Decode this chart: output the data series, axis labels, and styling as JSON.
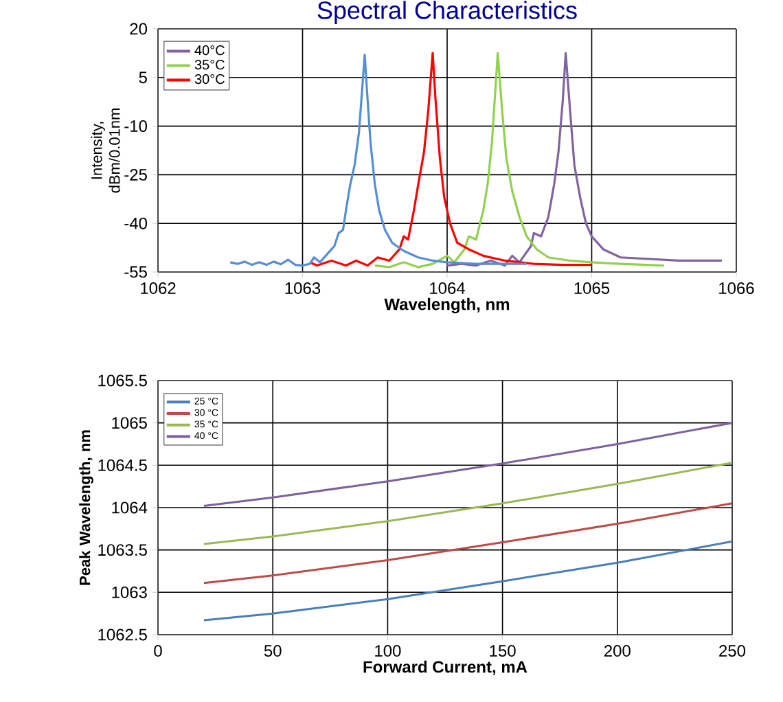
{
  "chart_data": [
    {
      "type": "line",
      "title": "Spectral Characteristics",
      "xlabel": "Wavelength, nm",
      "ylabel": "Intensity, dBm/0.01nm",
      "xlim": [
        1062,
        1066
      ],
      "ylim": [
        -55,
        20
      ],
      "xticks": [
        1062,
        1063,
        1064,
        1065,
        1066
      ],
      "yticks": [
        -55,
        -40,
        -25,
        -10,
        5,
        20
      ],
      "grid": true,
      "legend": "top left",
      "series": [
        {
          "name": "40°C",
          "color": "#8064a2",
          "x": [
            1064.0,
            1064.1,
            1064.2,
            1064.3,
            1064.4,
            1064.45,
            1064.5,
            1064.58,
            1064.6,
            1064.65,
            1064.7,
            1064.74,
            1064.77,
            1064.8,
            1064.82,
            1064.85,
            1064.88,
            1064.92,
            1064.96,
            1065.0,
            1065.08,
            1065.2,
            1065.4,
            1065.6,
            1065.9
          ],
          "values": [
            -53,
            -52.5,
            -53,
            -51.5,
            -53,
            -50,
            -52,
            -47,
            -43,
            -44,
            -38,
            -28,
            -18,
            -2,
            12.5,
            -5,
            -22,
            -32,
            -40,
            -44,
            -48,
            -50.5,
            -51,
            -51.5,
            -51.5
          ]
        },
        {
          "name": "35°C",
          "color": "#92d050",
          "x": [
            1063.5,
            1063.6,
            1063.7,
            1063.8,
            1063.9,
            1064.0,
            1064.05,
            1064.12,
            1064.15,
            1064.2,
            1064.25,
            1064.28,
            1064.31,
            1064.35,
            1064.38,
            1064.41,
            1064.45,
            1064.5,
            1064.55,
            1064.62,
            1064.7,
            1064.85,
            1065.0,
            1065.2,
            1065.5
          ],
          "values": [
            -53,
            -53.5,
            -52,
            -53.5,
            -52.5,
            -50,
            -52,
            -48,
            -44,
            -45,
            -36,
            -28,
            -15,
            12.5,
            -5,
            -20,
            -30,
            -38,
            -44,
            -48,
            -50.5,
            -51.5,
            -52,
            -52.5,
            -53
          ]
        },
        {
          "name": "30°C",
          "color": "#ff0000",
          "x": [
            1063.05,
            1063.1,
            1063.2,
            1063.3,
            1063.37,
            1063.45,
            1063.52,
            1063.6,
            1063.67,
            1063.7,
            1063.73,
            1063.77,
            1063.8,
            1063.84,
            1063.87,
            1063.9,
            1063.92,
            1063.95,
            1063.98,
            1064.02,
            1064.07,
            1064.15,
            1064.25,
            1064.4,
            1064.6,
            1064.8,
            1065.0
          ],
          "values": [
            -52,
            -53,
            -51.5,
            -53,
            -51.5,
            -53,
            -50.5,
            -51.5,
            -48,
            -44,
            -45,
            -36,
            -28,
            -18,
            -5,
            12.5,
            -2,
            -20,
            -32,
            -40,
            -46,
            -48,
            -50,
            -51.5,
            -52.5,
            -52.8,
            -52.8
          ]
        },
        {
          "color": "#558ed5",
          "x": [
            1062.5,
            1062.55,
            1062.6,
            1062.65,
            1062.7,
            1062.75,
            1062.8,
            1062.85,
            1062.9,
            1062.95,
            1063.0,
            1063.05,
            1063.08,
            1063.12,
            1063.18,
            1063.22,
            1063.25,
            1063.28,
            1063.3,
            1063.33,
            1063.36,
            1063.39,
            1063.41,
            1063.43,
            1063.45,
            1063.47,
            1063.5,
            1063.53,
            1063.57,
            1063.62,
            1063.7,
            1063.8,
            1063.9,
            1064.0,
            1064.2,
            1064.4,
            1064.55
          ],
          "values": [
            -52,
            -52.5,
            -51.8,
            -52.8,
            -52,
            -52.8,
            -51.8,
            -52.6,
            -51.2,
            -52.8,
            -53,
            -52.5,
            -50.5,
            -52,
            -49,
            -47,
            -43,
            -42,
            -36,
            -28,
            -22,
            -12,
            0,
            12,
            -2,
            -15,
            -28,
            -36,
            -42,
            -46,
            -48.5,
            -50.5,
            -51.5,
            -52,
            -52.5,
            -52.5,
            -52.5
          ]
        }
      ]
    },
    {
      "type": "line",
      "xlabel": "Forward Current, mA",
      "ylabel": "Peak Wavelength, nm",
      "xlim": [
        0,
        250
      ],
      "ylim": [
        1062.5,
        1065.5
      ],
      "xticks": [
        0,
        50,
        100,
        150,
        200,
        250
      ],
      "yticks": [
        1062.5,
        1063,
        1063.5,
        1064,
        1064.5,
        1065,
        1065.5
      ],
      "grid": true,
      "legend": "top left",
      "x": [
        20,
        50,
        100,
        150,
        200,
        250
      ],
      "series": [
        {
          "name": "25 °C",
          "color": "#4a7ebb",
          "values": [
            1062.67,
            1062.75,
            1062.92,
            1063.13,
            1063.35,
            1063.6
          ]
        },
        {
          "name": "30 °C",
          "color": "#be4b48",
          "values": [
            1063.11,
            1063.2,
            1063.38,
            1063.59,
            1063.81,
            1064.05
          ]
        },
        {
          "name": "35 °C",
          "color": "#98b954",
          "values": [
            1063.57,
            1063.66,
            1063.84,
            1064.05,
            1064.28,
            1064.53
          ]
        },
        {
          "name": "40 °C",
          "color": "#7d60a0",
          "values": [
            1064.02,
            1064.12,
            1064.31,
            1064.52,
            1064.75,
            1065.0
          ]
        }
      ]
    }
  ]
}
